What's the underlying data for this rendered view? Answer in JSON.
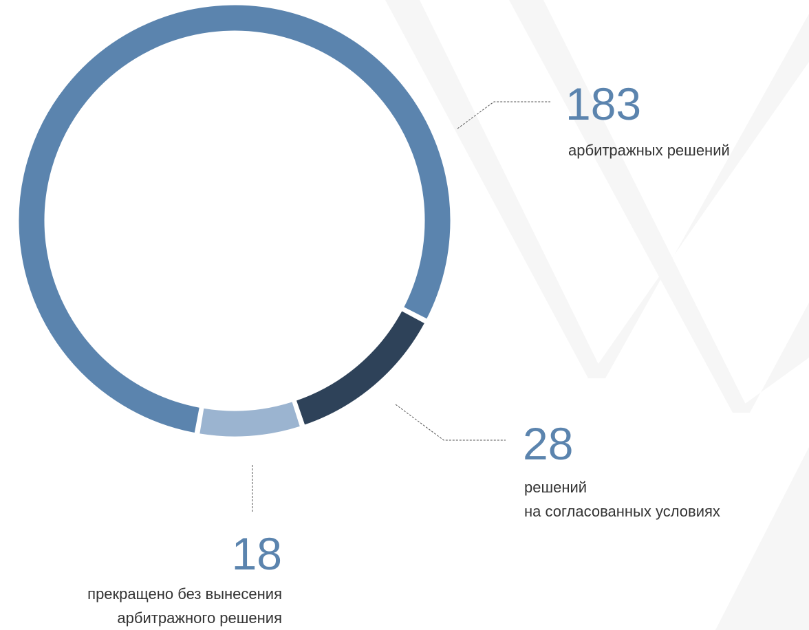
{
  "chart_data": {
    "type": "donut",
    "categories": [
      [
        "арбитражных решений"
      ],
      [
        "решений",
        "на согласованных условиях"
      ],
      [
        "прекращено без вынесения",
        "арбитражного решения"
      ]
    ],
    "values": [
      183,
      28,
      18
    ],
    "colors": [
      "#5b84ae",
      "#2e4259",
      "#9bb4d0"
    ]
  }
}
